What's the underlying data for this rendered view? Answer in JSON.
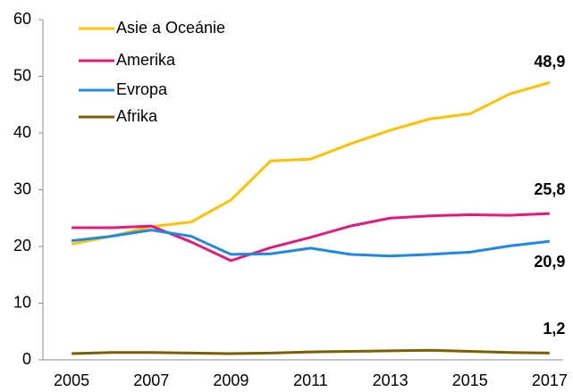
{
  "chart_data": {
    "type": "line",
    "x": [
      2005,
      2006,
      2007,
      2008,
      2009,
      2010,
      2011,
      2012,
      2013,
      2014,
      2015,
      2016,
      2017
    ],
    "xlim": [
      2004.28,
      2017.34
    ],
    "xticks": [
      2005,
      2007,
      2009,
      2011,
      2013,
      2015,
      2017
    ],
    "ylim": [
      0,
      60
    ],
    "yticks": [
      0,
      10,
      20,
      30,
      40,
      50,
      60
    ],
    "grid": false,
    "legend": "top-left",
    "series": [
      {
        "name": "Asie a Oceánie",
        "color": "#ffc000",
        "values": [
          20.4,
          21.8,
          23.5,
          24.3,
          28.2,
          35.1,
          35.4,
          38.1,
          40.5,
          42.5,
          43.4,
          46.9,
          48.9
        ],
        "value_labels": [
          null,
          null,
          null,
          null,
          null,
          null,
          null,
          null,
          null,
          null,
          null,
          null,
          "48,9"
        ]
      },
      {
        "name": "Amerika",
        "color": "#e6197a",
        "values": [
          23.3,
          23.3,
          23.6,
          20.8,
          17.5,
          19.8,
          21.6,
          23.6,
          25.0,
          25.4,
          25.6,
          25.5,
          25.8
        ],
        "value_labels": [
          null,
          null,
          null,
          null,
          null,
          null,
          null,
          null,
          null,
          null,
          null,
          null,
          "25,8"
        ]
      },
      {
        "name": "Evropa",
        "color": "#1e88e5",
        "values": [
          21.0,
          21.8,
          22.9,
          21.8,
          18.6,
          18.7,
          19.7,
          18.6,
          18.3,
          18.6,
          19.0,
          20.1,
          20.9
        ],
        "value_labels": [
          null,
          null,
          null,
          null,
          null,
          null,
          null,
          null,
          null,
          null,
          null,
          null,
          "20,9"
        ]
      },
      {
        "name": "Afrika",
        "color": "#7f5f00",
        "values": [
          1.1,
          1.3,
          1.3,
          1.2,
          1.1,
          1.2,
          1.4,
          1.5,
          1.6,
          1.7,
          1.5,
          1.3,
          1.2
        ],
        "value_labels": [
          null,
          null,
          null,
          null,
          null,
          null,
          null,
          null,
          null,
          null,
          null,
          null,
          "1,2"
        ]
      }
    ]
  }
}
